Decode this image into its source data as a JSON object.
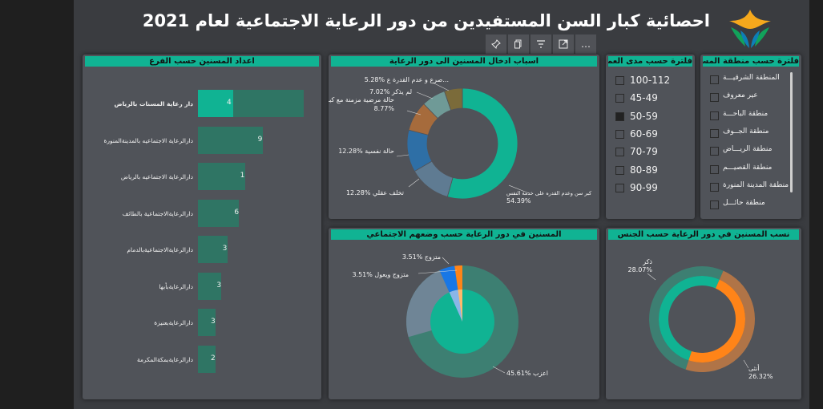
{
  "page": {
    "title": "احصائية كبار السن المستفيدين من دور الرعاية الاجتماعية لعام 2021"
  },
  "toolbar": {
    "pin_icon": "pin-icon",
    "copy_icon": "copy-icon",
    "filter_icon": "filter-icon",
    "focus_icon": "focus-mode-icon",
    "more_icon": "more-icon",
    "more_label": "…"
  },
  "bar_panel": {
    "title": "اعداد المسنين حسب الفرع"
  },
  "reasons_panel": {
    "title": "اسباب ادخال المسنين الى دور الرعاية"
  },
  "age_slicer": {
    "title": "فلترة حسب مدى العمر",
    "options": [
      {
        "label": "100-112",
        "checked": false
      },
      {
        "label": "45-49",
        "checked": false
      },
      {
        "label": "50-59",
        "checked": true
      },
      {
        "label": "60-69",
        "checked": false
      },
      {
        "label": "70-79",
        "checked": false
      },
      {
        "label": "80-89",
        "checked": false
      },
      {
        "label": "90-99",
        "checked": false
      }
    ]
  },
  "region_slicer": {
    "title": "فلترة حسب منطقة المسن",
    "options": [
      {
        "label": "المنطقة الشرقيـــة",
        "checked": false
      },
      {
        "label": "عير معروف",
        "checked": false
      },
      {
        "label": "منطقة الباحـــة",
        "checked": false
      },
      {
        "label": "منطقة الجــوف",
        "checked": false
      },
      {
        "label": "منطقة الريـــاض",
        "checked": false
      },
      {
        "label": "منطقة القصيـــم",
        "checked": false
      },
      {
        "label": "منطقة المدينة المنورة",
        "checked": false
      },
      {
        "label": "منطقة حائـــل",
        "checked": false
      }
    ]
  },
  "social_panel": {
    "title": "المسنين في دور الرعاية حسب وضعهم الاجتماعي"
  },
  "gender_panel": {
    "title": "نسب المسنين في دور الرعاية حسب الجنس"
  },
  "colors": {
    "accent": "#10b393",
    "panel": "#505359",
    "canvas": "#3a3c40",
    "bar": "#2f7564",
    "bar_selected": "#10b393",
    "orange": "#ff8418",
    "brown": "#b07447",
    "slate": "#6f8596"
  },
  "chart_data": [
    {
      "type": "bar",
      "title": "اعداد المسنين حسب الفرع",
      "categories": [
        "دار رعاية المسنات بالرياض",
        "دارالرعاية الاجتماعيه بالمدينةالمنورة",
        "دارالرعاية الاجتماعيه بالرياض",
        "دارالرعايةالاجتماعية بالطائف",
        "دارالرعايةالاجتماعيةبالدمام",
        "دارالرعايةبأبها",
        "دارالرعايةبعنيزة",
        "دارالرعايةبمكةالمكرمة"
      ],
      "values": [
        4,
        9,
        1,
        6,
        3,
        3,
        3,
        2
      ],
      "background_values": [
        9,
        5.5,
        4,
        3.5,
        2.5,
        2,
        1.5,
        1.5
      ],
      "highlighted_index": 0
    },
    {
      "type": "pie",
      "title": "اسباب ادخال المسنين الى دور الرعاية",
      "donut": true,
      "slices": [
        {
          "label": "كبر سن وعدم القدره على خدمة النفس",
          "value": 54.39,
          "color": "#10b393"
        },
        {
          "label": "تخلف عقلي",
          "value": 12.28,
          "color": "#5f7b92"
        },
        {
          "label": "حالة نفسية",
          "value": 12.28,
          "color": "#2e6fa6"
        },
        {
          "label": "حالة مرضية مزمنة مع كبر سن",
          "value": 8.77,
          "color": "#a66b3c"
        },
        {
          "label": "لم يذكر",
          "value": 7.02,
          "color": "#6f9a97"
        },
        {
          "label": "صرع و عدم القدرة ع...",
          "value": 5.28,
          "color": "#7b6b3a"
        }
      ],
      "slice_labels": [
        "54.39%",
        "12.28%",
        "12.28%",
        "8.77%",
        "7.02%",
        "5.28%"
      ]
    },
    {
      "type": "pie",
      "title": "المسنين في دور الرعاية حسب وضعهم الاجتماعي",
      "slices": [
        {
          "label": "اعزب",
          "value": 45.61,
          "color": "#10b393",
          "highlight_value": 45.61
        },
        {
          "label": "متزوج ويعول",
          "value": 3.51,
          "color": "#1877e6"
        },
        {
          "label": "متزوج",
          "value": 3.51,
          "color": "#ff8418"
        },
        {
          "label": "",
          "value": 47.37,
          "color": "#6f8596"
        }
      ],
      "slice_labels": [
        "45.61% اعزب",
        "3.51% متزوج ويعول",
        "3.51% متزوج"
      ]
    },
    {
      "type": "pie",
      "title": "نسب المسنين في دور الرعاية حسب الجنس",
      "donut": true,
      "slices": [
        {
          "label": "ذكر",
          "value": 28.07,
          "color": "#10b393"
        },
        {
          "label": "أنثى",
          "value": 26.32,
          "color": "#ff8418"
        }
      ],
      "slice_labels": [
        "28.07%",
        "26.32%"
      ]
    }
  ]
}
